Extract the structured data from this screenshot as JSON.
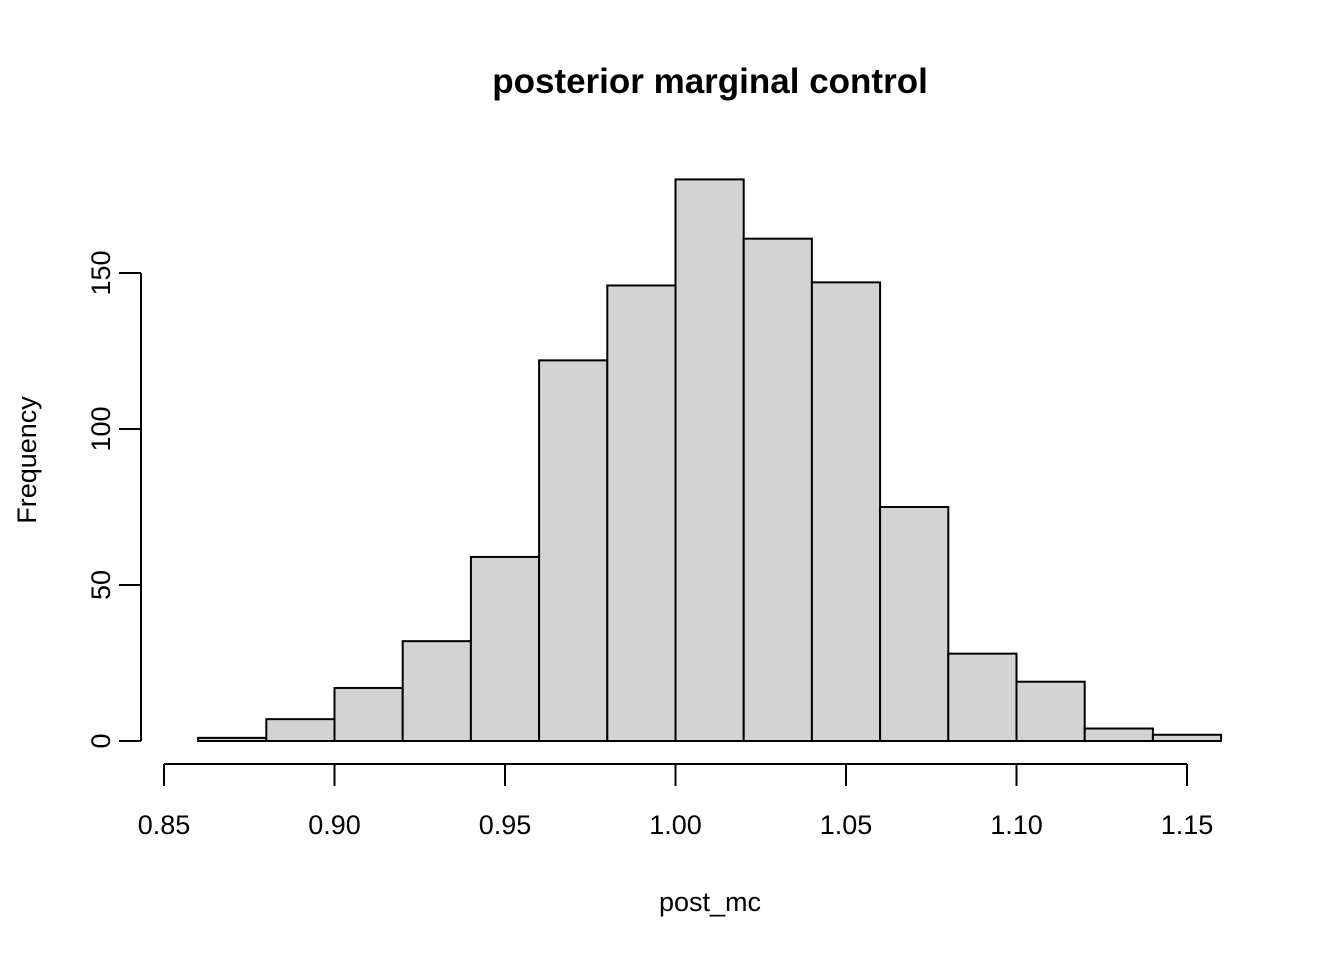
{
  "chart_data": {
    "type": "bar",
    "title": "posterior marginal control",
    "xlabel": "post_mc",
    "ylabel": "Frequency",
    "bins": [
      {
        "from": 0.86,
        "to": 0.88,
        "count": 1
      },
      {
        "from": 0.88,
        "to": 0.9,
        "count": 7
      },
      {
        "from": 0.9,
        "to": 0.92,
        "count": 17
      },
      {
        "from": 0.92,
        "to": 0.94,
        "count": 32
      },
      {
        "from": 0.94,
        "to": 0.96,
        "count": 59
      },
      {
        "from": 0.96,
        "to": 0.98,
        "count": 122
      },
      {
        "from": 0.98,
        "to": 1.0,
        "count": 146
      },
      {
        "from": 1.0,
        "to": 1.02,
        "count": 180
      },
      {
        "from": 1.02,
        "to": 1.04,
        "count": 161
      },
      {
        "from": 1.04,
        "to": 1.06,
        "count": 147
      },
      {
        "from": 1.06,
        "to": 1.08,
        "count": 75
      },
      {
        "from": 1.08,
        "to": 1.1,
        "count": 28
      },
      {
        "from": 1.1,
        "to": 1.12,
        "count": 19
      },
      {
        "from": 1.12,
        "to": 1.14,
        "count": 4
      },
      {
        "from": 1.14,
        "to": 1.16,
        "count": 2
      }
    ],
    "xlim": [
      0.85,
      1.16
    ],
    "ylim": [
      0,
      180
    ],
    "x_ticks": [
      "0.85",
      "0.90",
      "0.95",
      "1.00",
      "1.05",
      "1.10",
      "1.15"
    ],
    "y_ticks": [
      "0",
      "50",
      "100",
      "150"
    ],
    "grid": false,
    "colors": {
      "bar_fill": "#d3d3d3",
      "bar_stroke": "#000000"
    }
  }
}
